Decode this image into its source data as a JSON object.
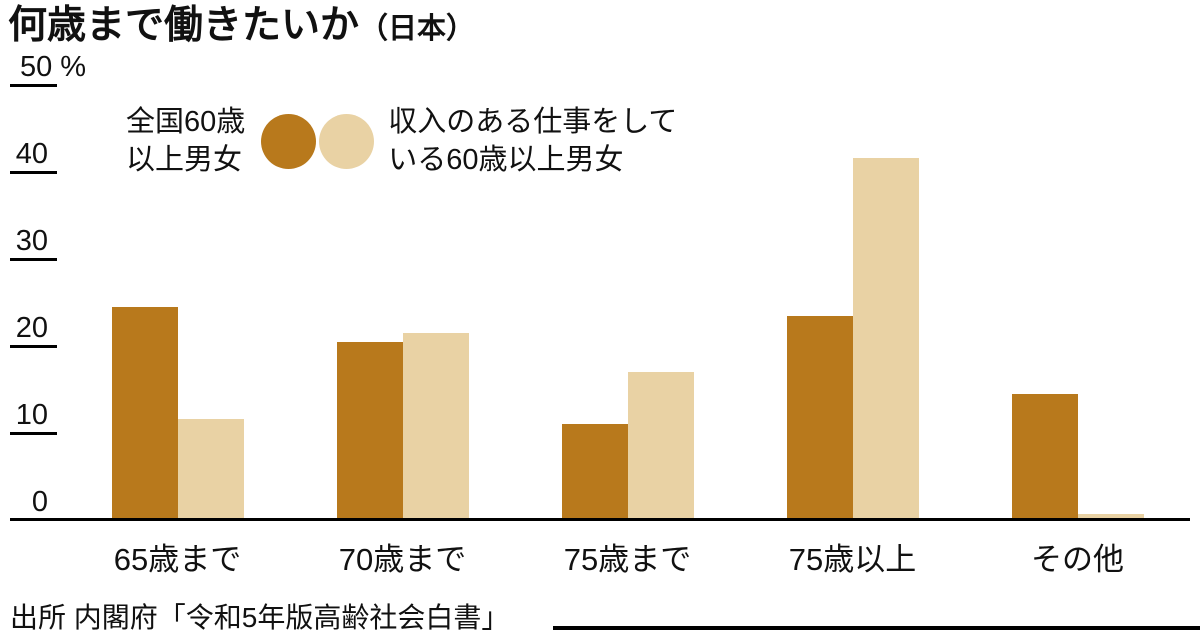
{
  "title": {
    "main": "何歳まで働きたいか",
    "suffix": "（日本）"
  },
  "y_axis": {
    "unit": "%",
    "ticks": [
      "50",
      "40",
      "30",
      "20",
      "10",
      "0"
    ]
  },
  "legend": {
    "s1_line1": "全国60歳",
    "s1_line2": "以上男女",
    "s2_line1": "収入のある仕事をして",
    "s2_line2": "いる60歳以上男女"
  },
  "source": "出所 内閣府「令和5年版高齢社会白書」",
  "colors": {
    "series1": "#b8791c",
    "series2": "#e9d2a4"
  },
  "chart_data": {
    "type": "bar",
    "categories": [
      "65歳まで",
      "70歳まで",
      "75歳まで",
      "75歳以上",
      "その他"
    ],
    "series": [
      {
        "name": "全国60歳以上男女",
        "values": [
          24.5,
          20.5,
          11.0,
          23.5,
          14.5
        ]
      },
      {
        "name": "収入のある仕事をしている60歳以上男女",
        "values": [
          11.6,
          21.5,
          17.0,
          41.6,
          0.7
        ]
      }
    ],
    "title": "何歳まで働きたいか（日本）",
    "xlabel": "",
    "ylabel": "%",
    "ylim": [
      0,
      50
    ],
    "grid": false,
    "legend_position": "top"
  }
}
